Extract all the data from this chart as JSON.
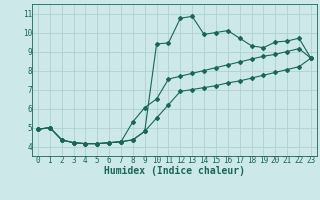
{
  "xlabel": "Humidex (Indice chaleur)",
  "bg_color": "#cce8e8",
  "grid_color": "#b0d0d0",
  "line_color": "#1a6655",
  "xlim": [
    -0.5,
    23.5
  ],
  "ylim": [
    3.5,
    11.5
  ],
  "xticks": [
    0,
    1,
    2,
    3,
    4,
    5,
    6,
    7,
    8,
    9,
    10,
    11,
    12,
    13,
    14,
    15,
    16,
    17,
    18,
    19,
    20,
    21,
    22,
    23
  ],
  "yticks": [
    4,
    5,
    6,
    7,
    8,
    9,
    10,
    11
  ],
  "line1_x": [
    0,
    1,
    2,
    3,
    4,
    5,
    6,
    7,
    8,
    9,
    10,
    11,
    12,
    13,
    14,
    15,
    16,
    17,
    18,
    19,
    20,
    21,
    22,
    23
  ],
  "line1_y": [
    4.9,
    5.0,
    4.35,
    4.2,
    4.15,
    4.15,
    4.2,
    4.25,
    4.35,
    4.8,
    9.4,
    9.45,
    10.75,
    10.85,
    9.9,
    10.0,
    10.1,
    9.7,
    9.3,
    9.2,
    9.5,
    9.55,
    9.7,
    8.65
  ],
  "line2_x": [
    0,
    1,
    2,
    3,
    4,
    5,
    6,
    7,
    8,
    9,
    10,
    11,
    12,
    13,
    14,
    15,
    16,
    17,
    18,
    19,
    20,
    21,
    22,
    23
  ],
  "line2_y": [
    4.9,
    5.0,
    4.35,
    4.2,
    4.15,
    4.15,
    4.2,
    4.25,
    5.3,
    6.05,
    6.5,
    7.55,
    7.7,
    7.85,
    8.0,
    8.15,
    8.3,
    8.45,
    8.6,
    8.75,
    8.85,
    9.0,
    9.15,
    8.65
  ],
  "line3_x": [
    0,
    1,
    2,
    3,
    4,
    5,
    6,
    7,
    8,
    9,
    10,
    11,
    12,
    13,
    14,
    15,
    16,
    17,
    18,
    19,
    20,
    21,
    22,
    23
  ],
  "line3_y": [
    4.9,
    5.0,
    4.35,
    4.2,
    4.15,
    4.15,
    4.2,
    4.25,
    4.35,
    4.8,
    5.5,
    6.2,
    6.9,
    7.0,
    7.1,
    7.2,
    7.35,
    7.45,
    7.6,
    7.75,
    7.9,
    8.05,
    8.2,
    8.65
  ],
  "tick_fontsize": 5.5,
  "xlabel_fontsize": 7,
  "tick_color": "#1a6655",
  "spine_color": "#1a6655"
}
